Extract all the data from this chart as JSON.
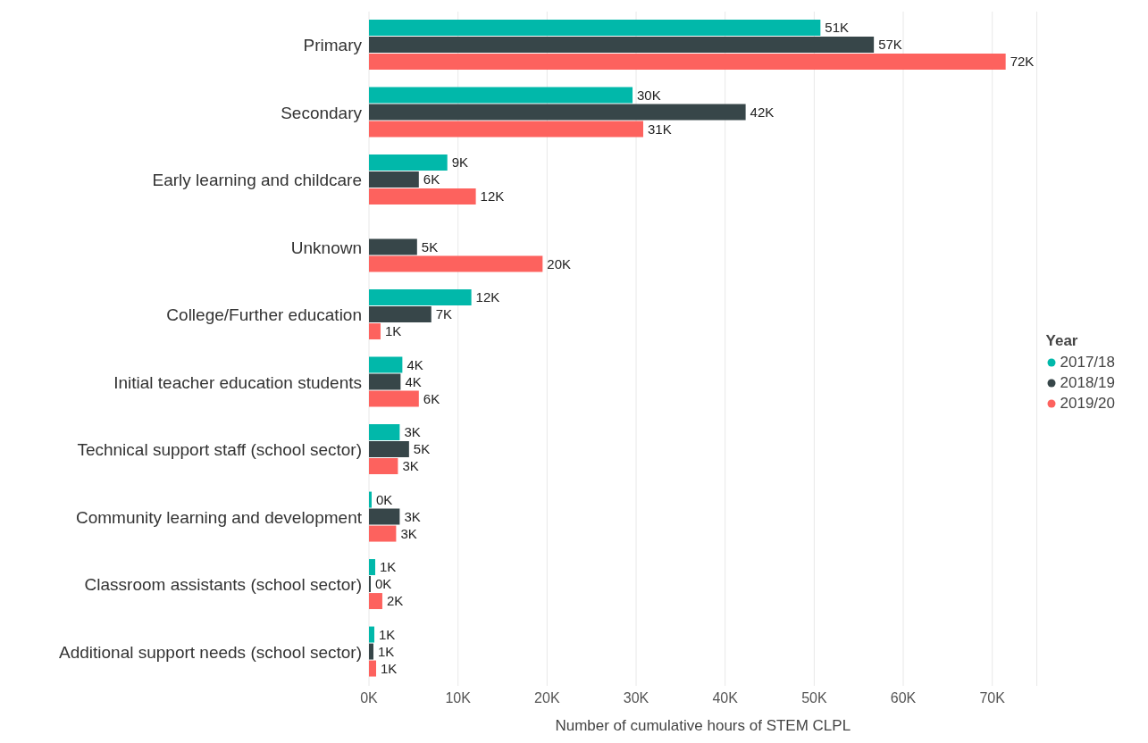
{
  "chart_data": {
    "type": "bar",
    "orientation": "horizontal",
    "categories": [
      "Primary",
      "Secondary",
      "Early learning and childcare",
      "Unknown",
      "College/Further education",
      "Initial teacher education students",
      "Technical support staff (school sector)",
      "Community learning and development",
      "Classroom assistants (school sector)",
      "Additional support needs (school sector)"
    ],
    "series": [
      {
        "name": "2017/18",
        "color": "#01b8aa",
        "values": [
          50700,
          29600,
          8800,
          null,
          11500,
          3750,
          3450,
          300,
          700,
          600
        ],
        "value_labels": [
          "51K",
          "30K",
          "9K",
          null,
          "12K",
          "4K",
          "3K",
          "0K",
          "1K",
          "1K"
        ]
      },
      {
        "name": "2018/19",
        "color": "#374649",
        "values": [
          56700,
          42300,
          5600,
          5400,
          7000,
          3550,
          4500,
          3450,
          200,
          500
        ],
        "value_labels": [
          "57K",
          "42K",
          "6K",
          "5K",
          "7K",
          "4K",
          "5K",
          "3K",
          "0K",
          "1K"
        ]
      },
      {
        "name": "2019/20",
        "color": "#fd625e",
        "values": [
          71500,
          30800,
          12000,
          19500,
          1300,
          5600,
          3250,
          3050,
          1500,
          800
        ],
        "value_labels": [
          "72K",
          "31K",
          "12K",
          "20K",
          "1K",
          "6K",
          "3K",
          "3K",
          "2K",
          "1K"
        ]
      }
    ],
    "xlabel": "Number of cumulative hours of STEM CLPL",
    "legend_title": "Year",
    "legend": "right",
    "grid": "x",
    "marker": "circle",
    "xlim": [
      0,
      75000
    ],
    "xticks": [
      {
        "value": 0,
        "label": "0K"
      },
      {
        "value": 10000,
        "label": "10K"
      },
      {
        "value": 20000,
        "label": "20K"
      },
      {
        "value": 30000,
        "label": "30K"
      },
      {
        "value": 40000,
        "label": "40K"
      },
      {
        "value": 50000,
        "label": "50K"
      },
      {
        "value": 60000,
        "label": "60K"
      },
      {
        "value": 70000,
        "label": "70K"
      }
    ]
  }
}
